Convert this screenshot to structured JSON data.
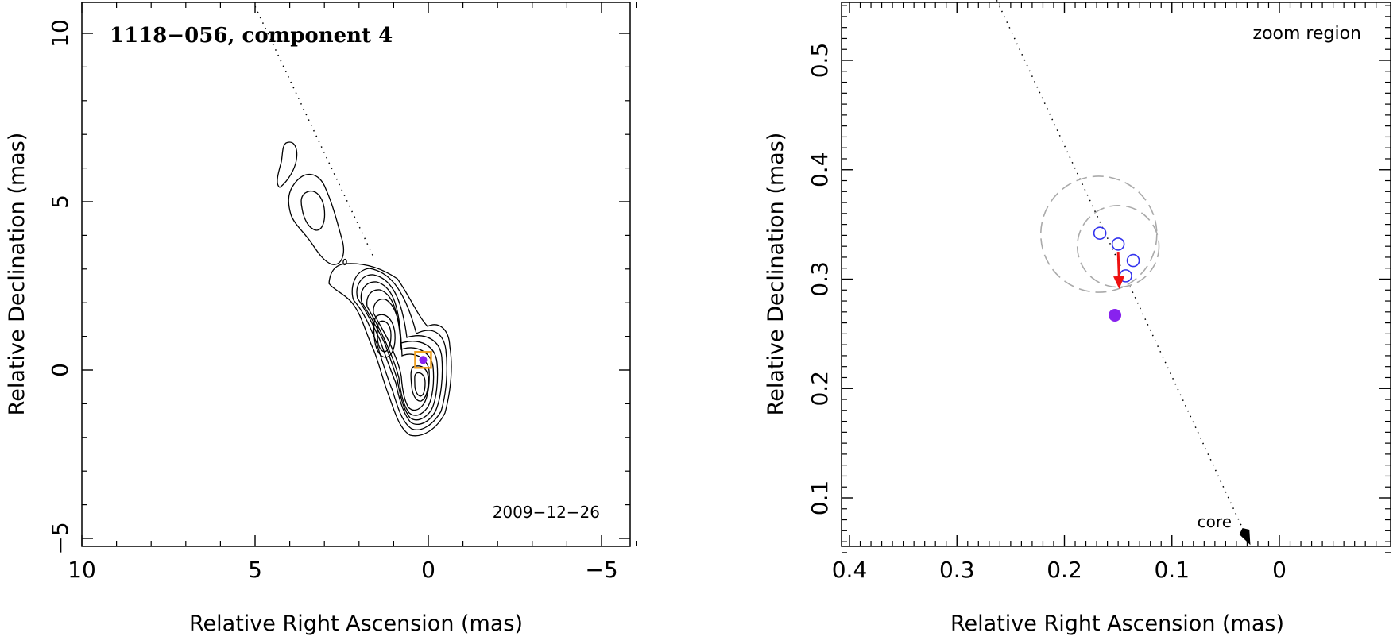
{
  "colors": {
    "axis": "#000000",
    "contour": "#000000",
    "component": "#3333ee",
    "mean_position": "#8822ee",
    "motion_arrow": "#ee1111",
    "ring": "#aaaaaa",
    "marker_box": "#f0a020"
  },
  "chart_data": [
    {
      "type": "contour",
      "title": "1118−056, component 4",
      "annotation": "2009−12−26",
      "xlabel": "Relative Right Ascension (mas)",
      "ylabel": "Relative Declination (mas)",
      "xlim": [
        10,
        -6
      ],
      "ylim": [
        -5,
        11
      ],
      "xticks": [
        10,
        5,
        0,
        -5
      ],
      "xtick_labels": [
        "10",
        "5",
        "0",
        "−5"
      ],
      "yticks": [
        10,
        5,
        0,
        -5
      ],
      "ytick_labels": [
        "10",
        "5",
        "0",
        "−5"
      ],
      "jet_axis_line": [
        [
          5,
          10.8
        ],
        [
          1.6,
          3.4
        ]
      ],
      "component_marker": {
        "x": 0.15,
        "y": 0.3
      },
      "core_peak": {
        "x": 0.0,
        "y": 0.2
      }
    },
    {
      "type": "scatter",
      "annotation": "zoom region",
      "core_label": "core",
      "xlabel": "Relative Right Ascension (mas)",
      "ylabel": "Relative Declination (mas)",
      "xlim": [
        0.4,
        -0.1
      ],
      "ylim": [
        0.05,
        0.55
      ],
      "xticks": [
        0.4,
        0.3,
        0.2,
        0.1,
        0
      ],
      "xtick_labels": [
        "0.4",
        "0.3",
        "0.2",
        "0.1",
        "0"
      ],
      "yticks": [
        0.1,
        0.2,
        0.3,
        0.4,
        0.5
      ],
      "ytick_labels": [
        "0.1",
        "0.2",
        "0.3",
        "0.4",
        "0.5"
      ],
      "components": [
        {
          "x": 0.167,
          "y": 0.342
        },
        {
          "x": 0.15,
          "y": 0.332
        },
        {
          "x": 0.136,
          "y": 0.317
        },
        {
          "x": 0.143,
          "y": 0.303
        }
      ],
      "mean_position": {
        "x": 0.153,
        "y": 0.267
      },
      "motion_vector": {
        "from": [
          0.15,
          0.325
        ],
        "to": [
          0.149,
          0.291
        ]
      },
      "error_rings": [
        {
          "cx": 0.168,
          "cy": 0.341,
          "r": 0.054
        },
        {
          "cx": 0.15,
          "cy": 0.33,
          "r": 0.038
        }
      ],
      "jet_axis_line": [
        [
          0.263,
          0.555
        ],
        [
          0.027,
          0.057
        ]
      ]
    }
  ]
}
